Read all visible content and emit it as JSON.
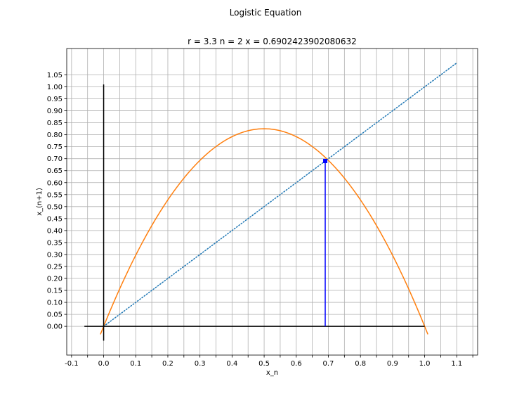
{
  "chart_data": {
    "type": "line",
    "suptitle": "Logistic Equation",
    "title": "r = 3.3 n = 2 x = 0.6902423902080632",
    "xlabel": "x_n",
    "ylabel": "x_(n+1)",
    "xlim": [
      -0.115,
      1.165
    ],
    "ylim": [
      -0.12,
      1.16
    ],
    "grid": true,
    "x_ticks": [
      -0.1,
      -0.05,
      0.0,
      0.05,
      0.1,
      0.15,
      0.2,
      0.25,
      0.3,
      0.35,
      0.4,
      0.45,
      0.5,
      0.55,
      0.6,
      0.65,
      0.7,
      0.75,
      0.8,
      0.85,
      0.9,
      0.95,
      1.0,
      1.05,
      1.1,
      1.15
    ],
    "x_tick_labels": [
      "-0.1",
      "",
      "0.0",
      "",
      "0.1",
      "",
      "0.2",
      "",
      "0.3",
      "",
      "0.4",
      "",
      "0.5",
      "",
      "0.6",
      "",
      "0.7",
      "",
      "0.8",
      "",
      "0.9",
      "",
      "1.0",
      "",
      "1.1",
      ""
    ],
    "y_ticks": [
      0.0,
      0.05,
      0.1,
      0.15,
      0.2,
      0.25,
      0.3,
      0.35,
      0.4,
      0.45,
      0.5,
      0.55,
      0.6,
      0.65,
      0.7,
      0.75,
      0.8,
      0.85,
      0.9,
      0.95,
      1.0,
      1.05
    ],
    "y_tick_labels": [
      "0.00",
      "0.05",
      "0.10",
      "0.15",
      "0.20",
      "0.25",
      "0.30",
      "0.35",
      "0.40",
      "0.45",
      "0.50",
      "0.55",
      "0.60",
      "0.65",
      "0.70",
      "0.75",
      "0.80",
      "0.85",
      "0.90",
      "0.95",
      "1.00",
      "1.05"
    ],
    "r": 3.3,
    "n": 2,
    "x": 0.6902423902080632,
    "series": [
      {
        "role": "logistic-curve",
        "style": "solid",
        "color": "#ff7f0e",
        "x_range": [
          -0.01,
          1.01
        ],
        "samples": 121
      },
      {
        "role": "diagonal",
        "style": "dotted",
        "color": "#1f77b4",
        "x": [
          0.0,
          1.1
        ],
        "y": [
          0.0,
          1.1
        ]
      },
      {
        "role": "x-axis-line",
        "style": "solid",
        "color": "#000000",
        "x": [
          -0.06,
          1.0
        ],
        "y": [
          0.0,
          0.0
        ]
      },
      {
        "role": "y-axis-line",
        "style": "solid",
        "color": "#000000",
        "x": [
          0.0,
          0.0
        ],
        "y": [
          -0.06,
          1.01
        ]
      },
      {
        "role": "cobweb",
        "style": "solid",
        "color": "#0000ff",
        "x": [
          0.6902423902080632,
          0.6902423902080632
        ],
        "y": [
          0.0,
          0.6902423902080632
        ]
      }
    ],
    "marker": {
      "x": 0.6902423902080632,
      "y": 0.6902423902080632,
      "color": "#0000ff"
    }
  }
}
